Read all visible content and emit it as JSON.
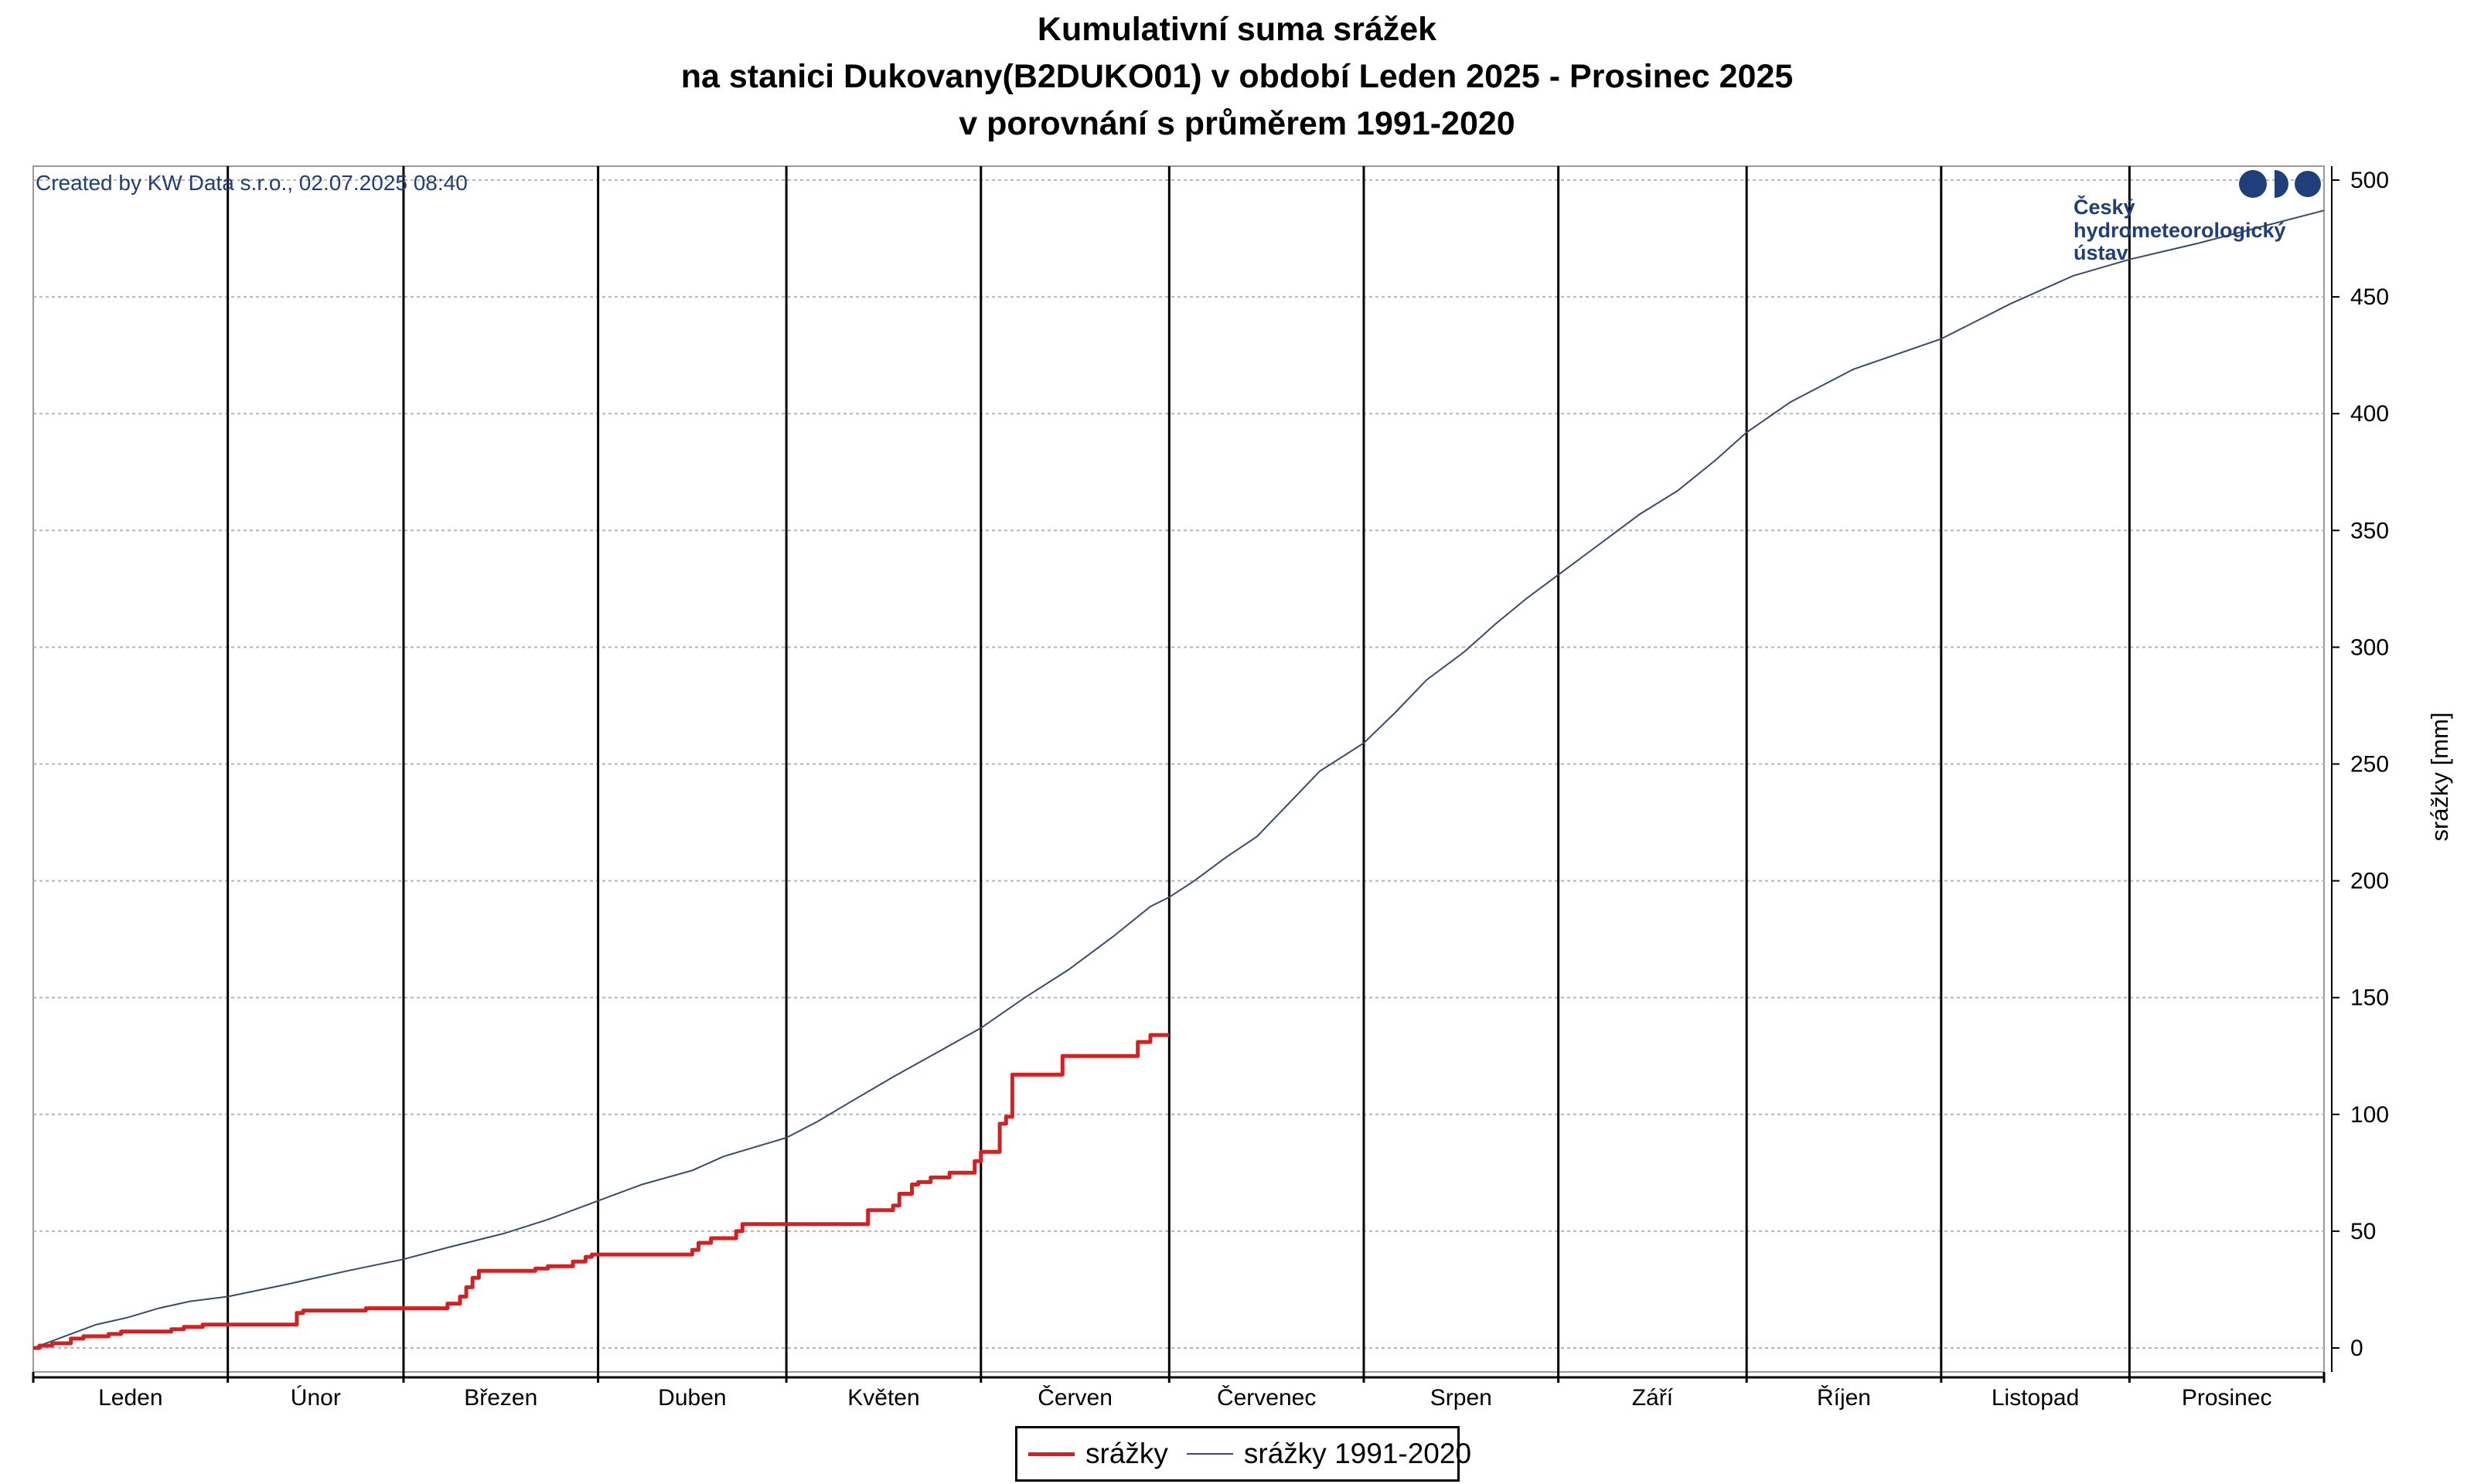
{
  "chart_data": {
    "type": "line",
    "title_lines": [
      "Kumulativní suma srážek",
      "na stanici Dukovany(B2DUKO01) v období Leden 2025 - Prosinec 2025",
      "v porovnání s průměrem 1991-2020"
    ],
    "created_by": "Created by KW Data s.r.o., 02.07.2025 08:40",
    "logo": {
      "text_lines": [
        "Český",
        "hydrometeorologický",
        "ústav"
      ],
      "icon": "chmu-logo-icon"
    },
    "ylabel": "srážky [mm]",
    "ylim": [
      -5,
      505
    ],
    "yticks": [
      0,
      50,
      100,
      150,
      200,
      250,
      300,
      350,
      400,
      450,
      500
    ],
    "y_axis_side": "right",
    "grid": {
      "horizontal": "dashed",
      "vertical_month_separators": true
    },
    "x_axis": "day of year 2025",
    "months": [
      {
        "label": "Leden",
        "start_day": 0,
        "end_day": 31
      },
      {
        "label": "Únor",
        "start_day": 31,
        "end_day": 59
      },
      {
        "label": "Březen",
        "start_day": 59,
        "end_day": 90
      },
      {
        "label": "Duben",
        "start_day": 90,
        "end_day": 120
      },
      {
        "label": "Květen",
        "start_day": 120,
        "end_day": 151
      },
      {
        "label": "Červen",
        "start_day": 151,
        "end_day": 181
      },
      {
        "label": "Červenec",
        "start_day": 181,
        "end_day": 212
      },
      {
        "label": "Srpen",
        "start_day": 212,
        "end_day": 243
      },
      {
        "label": "Září",
        "start_day": 243,
        "end_day": 273
      },
      {
        "label": "Říjen",
        "start_day": 273,
        "end_day": 304
      },
      {
        "label": "Listopad",
        "start_day": 304,
        "end_day": 334
      },
      {
        "label": "Prosinec",
        "start_day": 334,
        "end_day": 365
      }
    ],
    "legend_position": "bottom-center",
    "series": [
      {
        "name": "srážky",
        "color": "#d42020",
        "style": "step",
        "points": [
          [
            0,
            0
          ],
          [
            1,
            1
          ],
          [
            3,
            2
          ],
          [
            6,
            4
          ],
          [
            8,
            5
          ],
          [
            12,
            6
          ],
          [
            14,
            7
          ],
          [
            22,
            8
          ],
          [
            24,
            9
          ],
          [
            27,
            10
          ],
          [
            42,
            15
          ],
          [
            43,
            16
          ],
          [
            53,
            17
          ],
          [
            62,
            17
          ],
          [
            66,
            19
          ],
          [
            68,
            22
          ],
          [
            69,
            26
          ],
          [
            70,
            30
          ],
          [
            71,
            33
          ],
          [
            80,
            34
          ],
          [
            82,
            35
          ],
          [
            86,
            37
          ],
          [
            88,
            39
          ],
          [
            89,
            40
          ],
          [
            105,
            42
          ],
          [
            106,
            45
          ],
          [
            108,
            47
          ],
          [
            112,
            50
          ],
          [
            113,
            53
          ],
          [
            133,
            59
          ],
          [
            137,
            61
          ],
          [
            138,
            66
          ],
          [
            140,
            70
          ],
          [
            141,
            71
          ],
          [
            143,
            73
          ],
          [
            146,
            75
          ],
          [
            150,
            80
          ],
          [
            151,
            84
          ],
          [
            154,
            96
          ],
          [
            155,
            99
          ],
          [
            156,
            117
          ],
          [
            164,
            125
          ],
          [
            176,
            131
          ],
          [
            178,
            134
          ],
          [
            181,
            134
          ]
        ]
      },
      {
        "name": "srážky 1991-2020",
        "color": "#3a4a6b",
        "style": "line",
        "points": [
          [
            0,
            0
          ],
          [
            5,
            5
          ],
          [
            10,
            10
          ],
          [
            15,
            13
          ],
          [
            20,
            17
          ],
          [
            25,
            20
          ],
          [
            31,
            22
          ],
          [
            40,
            27
          ],
          [
            50,
            33
          ],
          [
            59,
            38
          ],
          [
            66,
            43
          ],
          [
            75,
            49
          ],
          [
            82,
            55
          ],
          [
            90,
            63
          ],
          [
            97,
            70
          ],
          [
            105,
            76
          ],
          [
            110,
            82
          ],
          [
            115,
            86
          ],
          [
            120,
            90
          ],
          [
            125,
            97
          ],
          [
            130,
            105
          ],
          [
            137,
            116
          ],
          [
            145,
            128
          ],
          [
            151,
            137
          ],
          [
            158,
            150
          ],
          [
            165,
            162
          ],
          [
            172,
            176
          ],
          [
            178,
            189
          ],
          [
            181,
            193
          ],
          [
            185,
            200
          ],
          [
            190,
            210
          ],
          [
            195,
            219
          ],
          [
            200,
            233
          ],
          [
            205,
            247
          ],
          [
            212,
            259
          ],
          [
            217,
            272
          ],
          [
            222,
            286
          ],
          [
            228,
            298
          ],
          [
            233,
            310
          ],
          [
            238,
            321
          ],
          [
            243,
            331
          ],
          [
            248,
            341
          ],
          [
            252,
            349
          ],
          [
            256,
            357
          ],
          [
            262,
            367
          ],
          [
            268,
            380
          ],
          [
            273,
            392
          ],
          [
            280,
            405
          ],
          [
            290,
            419
          ],
          [
            304,
            432
          ],
          [
            315,
            447
          ],
          [
            325,
            459
          ],
          [
            334,
            466
          ],
          [
            345,
            473
          ],
          [
            355,
            480
          ],
          [
            365,
            487
          ]
        ]
      }
    ]
  }
}
